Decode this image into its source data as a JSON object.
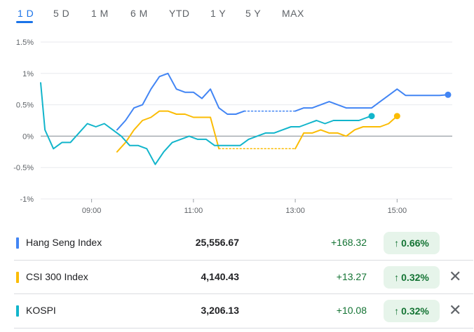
{
  "tabs": [
    {
      "label": "1 D",
      "active": true
    },
    {
      "label": "5 D",
      "active": false
    },
    {
      "label": "1 M",
      "active": false
    },
    {
      "label": "6 M",
      "active": false
    },
    {
      "label": "YTD",
      "active": false
    },
    {
      "label": "1 Y",
      "active": false
    },
    {
      "label": "5 Y",
      "active": false
    },
    {
      "label": "MAX",
      "active": false
    }
  ],
  "rows": [
    {
      "name": "Hang Seng Index",
      "price": "25,556.67",
      "change": "+168.32",
      "percent": "0.66%",
      "color": "#4285f4",
      "closable": false
    },
    {
      "name": "CSI 300 Index",
      "price": "4,140.43",
      "change": "+13.27",
      "percent": "0.32%",
      "color": "#fbbc04",
      "closable": true
    },
    {
      "name": "KOSPI",
      "price": "3,206.13",
      "change": "+10.08",
      "percent": "0.32%",
      "color": "#12b5cb",
      "closable": true
    }
  ],
  "chart_data": {
    "type": "line",
    "y_unit": "%",
    "ylim": [
      -1,
      1.5
    ],
    "yticks": [
      "1.5%",
      "1%",
      "0.5%",
      "0%",
      "-0.5%",
      "-1%"
    ],
    "ytick_values": [
      1.5,
      1,
      0.5,
      0,
      -0.5,
      -1
    ],
    "xlim": [
      "08:00",
      "16:05"
    ],
    "xticks": [
      "09:00",
      "11:00",
      "13:00",
      "15:00"
    ],
    "xtick_values": [
      "09:00",
      "11:00",
      "13:00",
      "15:00"
    ],
    "grid": "horizontal",
    "zero_line": true,
    "series": [
      {
        "name": "Hang Seng Index",
        "color": "#4285f4",
        "segments": [
          {
            "style": "solid",
            "points": [
              [
                "09:30",
                0.1
              ],
              [
                "09:40",
                0.25
              ],
              [
                "09:50",
                0.45
              ],
              [
                "10:00",
                0.5
              ],
              [
                "10:10",
                0.75
              ],
              [
                "10:20",
                0.95
              ],
              [
                "10:30",
                1.0
              ],
              [
                "10:40",
                0.75
              ],
              [
                "10:50",
                0.7
              ],
              [
                "11:00",
                0.7
              ],
              [
                "11:10",
                0.6
              ],
              [
                "11:20",
                0.75
              ],
              [
                "11:30",
                0.45
              ],
              [
                "11:40",
                0.35
              ],
              [
                "11:50",
                0.35
              ],
              [
                "12:00",
                0.4
              ]
            ]
          },
          {
            "style": "dotted",
            "points": [
              [
                "12:00",
                0.4
              ],
              [
                "13:00",
                0.4
              ]
            ]
          },
          {
            "style": "solid",
            "points": [
              [
                "13:00",
                0.4
              ],
              [
                "13:10",
                0.45
              ],
              [
                "13:20",
                0.45
              ],
              [
                "13:30",
                0.5
              ],
              [
                "13:40",
                0.55
              ],
              [
                "13:50",
                0.5
              ],
              [
                "14:00",
                0.45
              ],
              [
                "14:10",
                0.45
              ],
              [
                "14:20",
                0.45
              ],
              [
                "14:30",
                0.45
              ],
              [
                "14:40",
                0.55
              ],
              [
                "14:50",
                0.65
              ],
              [
                "15:00",
                0.75
              ],
              [
                "15:10",
                0.65
              ],
              [
                "15:20",
                0.65
              ],
              [
                "15:30",
                0.65
              ],
              [
                "15:40",
                0.65
              ],
              [
                "15:50",
                0.65
              ],
              [
                "16:00",
                0.66
              ]
            ]
          }
        ]
      },
      {
        "name": "CSI 300 Index",
        "color": "#fbbc04",
        "segments": [
          {
            "style": "solid",
            "points": [
              [
                "09:30",
                -0.25
              ],
              [
                "09:40",
                -0.1
              ],
              [
                "09:50",
                0.1
              ],
              [
                "10:00",
                0.25
              ],
              [
                "10:10",
                0.3
              ],
              [
                "10:20",
                0.4
              ],
              [
                "10:30",
                0.4
              ],
              [
                "10:40",
                0.35
              ],
              [
                "10:50",
                0.35
              ],
              [
                "11:00",
                0.3
              ],
              [
                "11:10",
                0.3
              ],
              [
                "11:20",
                0.3
              ],
              [
                "11:30",
                -0.2
              ]
            ]
          },
          {
            "style": "dotted",
            "points": [
              [
                "11:30",
                -0.2
              ],
              [
                "13:00",
                -0.2
              ]
            ]
          },
          {
            "style": "solid",
            "points": [
              [
                "13:00",
                -0.2
              ],
              [
                "13:10",
                0.05
              ],
              [
                "13:20",
                0.05
              ],
              [
                "13:30",
                0.1
              ],
              [
                "13:40",
                0.05
              ],
              [
                "13:50",
                0.05
              ],
              [
                "14:00",
                0.0
              ],
              [
                "14:10",
                0.1
              ],
              [
                "14:20",
                0.15
              ],
              [
                "14:30",
                0.15
              ],
              [
                "14:40",
                0.15
              ],
              [
                "14:50",
                0.2
              ],
              [
                "15:00",
                0.32
              ]
            ]
          }
        ]
      },
      {
        "name": "KOSPI",
        "color": "#12b5cb",
        "segments": [
          {
            "style": "solid",
            "points": [
              [
                "08:00",
                0.85
              ],
              [
                "08:05",
                0.1
              ],
              [
                "08:15",
                -0.2
              ],
              [
                "08:25",
                -0.1
              ],
              [
                "08:35",
                -0.1
              ],
              [
                "08:45",
                0.05
              ],
              [
                "08:55",
                0.2
              ],
              [
                "09:05",
                0.15
              ],
              [
                "09:15",
                0.2
              ],
              [
                "09:25",
                0.1
              ],
              [
                "09:35",
                0.0
              ],
              [
                "09:45",
                -0.15
              ],
              [
                "09:55",
                -0.15
              ],
              [
                "10:05",
                -0.2
              ],
              [
                "10:15",
                -0.45
              ],
              [
                "10:25",
                -0.25
              ],
              [
                "10:35",
                -0.1
              ],
              [
                "10:45",
                -0.05
              ],
              [
                "10:55",
                0.0
              ],
              [
                "11:05",
                -0.05
              ],
              [
                "11:15",
                -0.05
              ],
              [
                "11:25",
                -0.15
              ],
              [
                "11:35",
                -0.15
              ],
              [
                "11:45",
                -0.15
              ],
              [
                "11:55",
                -0.15
              ],
              [
                "12:05",
                -0.05
              ],
              [
                "12:15",
                0.0
              ],
              [
                "12:25",
                0.05
              ],
              [
                "12:35",
                0.05
              ],
              [
                "12:45",
                0.1
              ],
              [
                "12:55",
                0.15
              ],
              [
                "13:05",
                0.15
              ],
              [
                "13:15",
                0.2
              ],
              [
                "13:25",
                0.25
              ],
              [
                "13:35",
                0.2
              ],
              [
                "13:45",
                0.25
              ],
              [
                "13:55",
                0.25
              ],
              [
                "14:05",
                0.25
              ],
              [
                "14:15",
                0.25
              ],
              [
                "14:25",
                0.3
              ],
              [
                "14:30",
                0.32
              ]
            ]
          }
        ]
      }
    ]
  }
}
